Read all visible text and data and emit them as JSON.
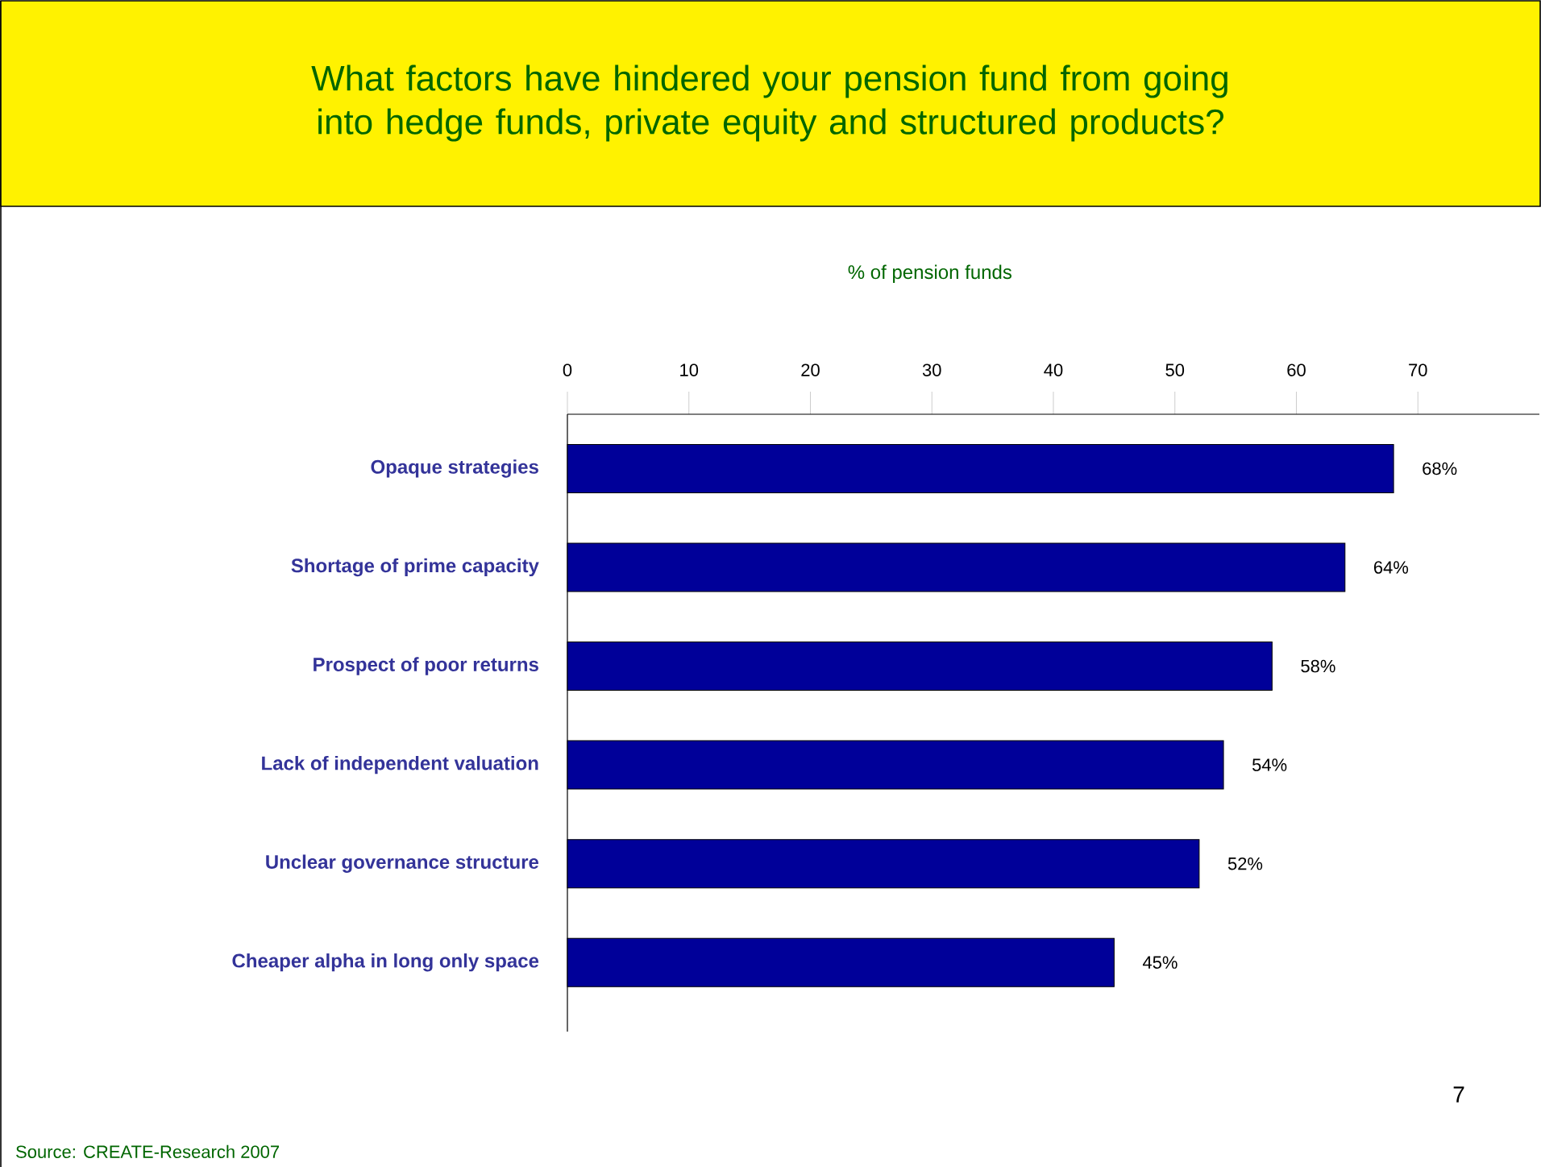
{
  "chart_data": {
    "type": "bar",
    "orientation": "horizontal",
    "title": "What factors have hindered your pension fund from going into hedge funds, private equity and structured products?",
    "xlabel": "% of pension funds",
    "categories": [
      "Opaque strategies",
      "Shortage of prime capacity",
      "Prospect of poor returns",
      "Lack of independent valuation",
      "Unclear governance structure",
      "Cheaper alpha in long only space"
    ],
    "values": [
      68,
      64,
      58,
      54,
      52,
      45
    ],
    "value_labels": [
      "68%",
      "64%",
      "58%",
      "54%",
      "52%",
      "45%"
    ],
    "color": "#000099",
    "xlim": [
      0,
      80
    ],
    "xticks": [
      0,
      10,
      20,
      30,
      40,
      50,
      60,
      70
    ],
    "annotations": [
      "Source:  CREATE-Research 2007",
      "7"
    ]
  }
}
